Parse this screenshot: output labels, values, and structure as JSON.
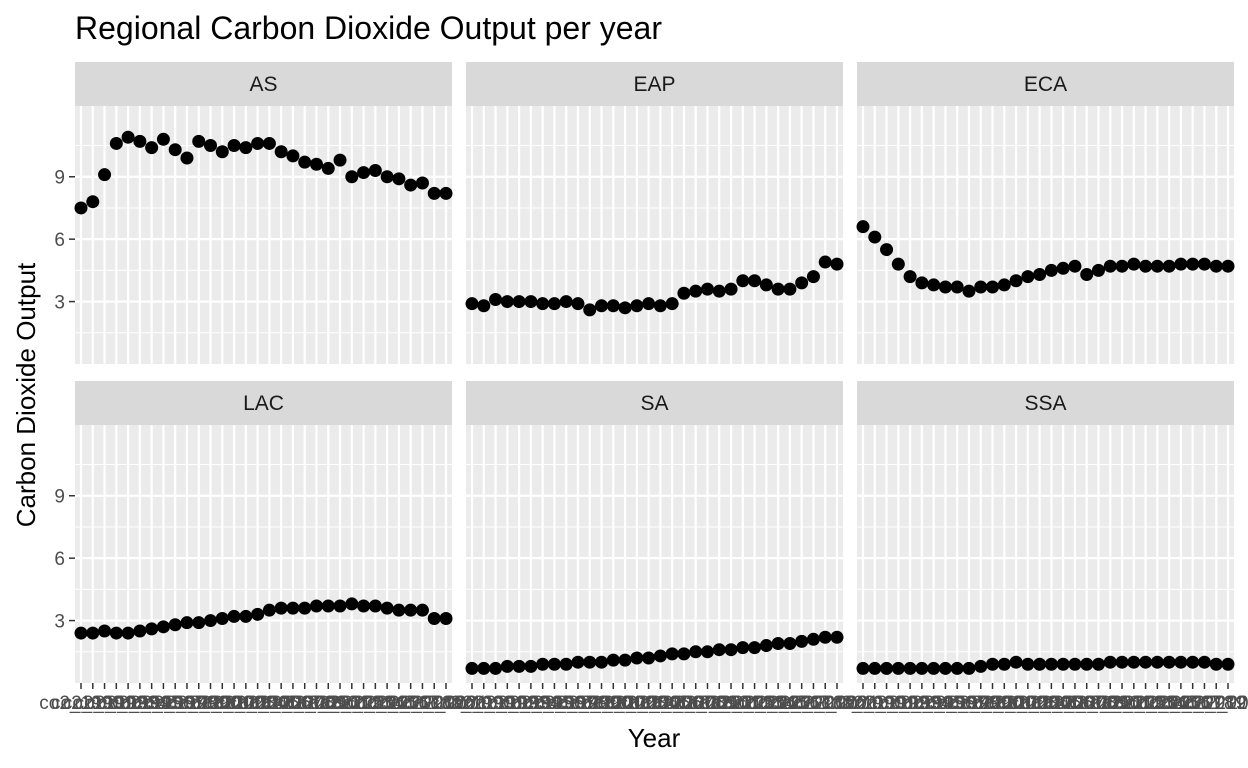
{
  "chart_data": {
    "type": "scatter",
    "title": "Regional Carbon Dioxide Output per year",
    "xlabel": "Year",
    "ylabel": "Carbon Dioxide Output",
    "ylim": [
      0,
      12.4
    ],
    "yticks": [
      3,
      6,
      9
    ],
    "grid": true,
    "facet_layout": {
      "rows": 2,
      "cols": 3
    },
    "point_color": "#000000",
    "panel_background": "#ebebeb",
    "strip_background": "#d9d9d9",
    "x_tick_labels": [
      "co2_1990",
      "co2_1991",
      "co2_1992",
      "co2_1993",
      "co2_1994",
      "co2_1995",
      "co2_1996",
      "co2_1997",
      "co2_1998",
      "co2_1999",
      "co2_2000",
      "co2_2001",
      "co2_2002",
      "co2_2003",
      "co2_2004",
      "co2_2005",
      "co2_2006",
      "co2_2007",
      "co2_2008",
      "co2_2009",
      "co2_2010",
      "co2_2011",
      "co2_2012",
      "co2_2013",
      "co2_2014",
      "co2_2015",
      "co2_2016",
      "co2_2017",
      "co2_2018",
      "co2_2019",
      "co2_2020",
      "co2_2021"
    ],
    "panels": [
      {
        "name": "AS",
        "values": [
          7.5,
          7.8,
          9.1,
          10.6,
          10.9,
          10.7,
          10.4,
          10.8,
          10.3,
          9.9,
          10.7,
          10.5,
          10.2,
          10.5,
          10.4,
          10.6,
          10.6,
          10.2,
          10.0,
          9.7,
          9.6,
          9.4,
          9.8,
          9.0,
          9.2,
          9.3,
          9.0,
          8.9,
          8.6,
          8.7,
          8.2,
          8.2
        ]
      },
      {
        "name": "EAP",
        "values": [
          2.9,
          2.8,
          3.1,
          3.0,
          3.0,
          3.0,
          2.9,
          2.9,
          3.0,
          2.9,
          2.6,
          2.8,
          2.8,
          2.7,
          2.8,
          2.9,
          2.8,
          2.9,
          3.4,
          3.5,
          3.6,
          3.5,
          3.6,
          4.0,
          4.0,
          3.8,
          3.6,
          3.6,
          3.9,
          4.2,
          4.9,
          4.8
        ]
      },
      {
        "name": "ECA",
        "values": [
          6.6,
          6.1,
          5.5,
          4.8,
          4.2,
          3.9,
          3.8,
          3.7,
          3.7,
          3.5,
          3.7,
          3.7,
          3.8,
          4.0,
          4.2,
          4.3,
          4.5,
          4.6,
          4.7,
          4.3,
          4.5,
          4.7,
          4.7,
          4.8,
          4.7,
          4.7,
          4.7,
          4.8,
          4.8,
          4.8,
          4.7,
          4.7
        ]
      },
      {
        "name": "LAC",
        "values": [
          2.4,
          2.4,
          2.5,
          2.4,
          2.4,
          2.5,
          2.6,
          2.7,
          2.8,
          2.9,
          2.9,
          3.0,
          3.1,
          3.2,
          3.2,
          3.3,
          3.5,
          3.6,
          3.6,
          3.6,
          3.7,
          3.7,
          3.7,
          3.8,
          3.7,
          3.7,
          3.6,
          3.5,
          3.5,
          3.5,
          3.1,
          3.1
        ]
      },
      {
        "name": "SA",
        "values": [
          0.7,
          0.7,
          0.7,
          0.8,
          0.8,
          0.8,
          0.9,
          0.9,
          0.9,
          1.0,
          1.0,
          1.0,
          1.1,
          1.1,
          1.2,
          1.2,
          1.3,
          1.4,
          1.4,
          1.5,
          1.5,
          1.6,
          1.6,
          1.7,
          1.7,
          1.8,
          1.9,
          1.9,
          2.0,
          2.1,
          2.2,
          2.2
        ]
      },
      {
        "name": "SSA",
        "values": [
          0.7,
          0.7,
          0.7,
          0.7,
          0.7,
          0.7,
          0.7,
          0.7,
          0.7,
          0.7,
          0.8,
          0.9,
          0.9,
          1.0,
          0.9,
          0.9,
          0.9,
          0.9,
          0.9,
          0.9,
          0.9,
          1.0,
          1.0,
          1.0,
          1.0,
          1.0,
          1.0,
          1.0,
          1.0,
          1.0,
          0.9,
          0.9
        ]
      }
    ]
  }
}
